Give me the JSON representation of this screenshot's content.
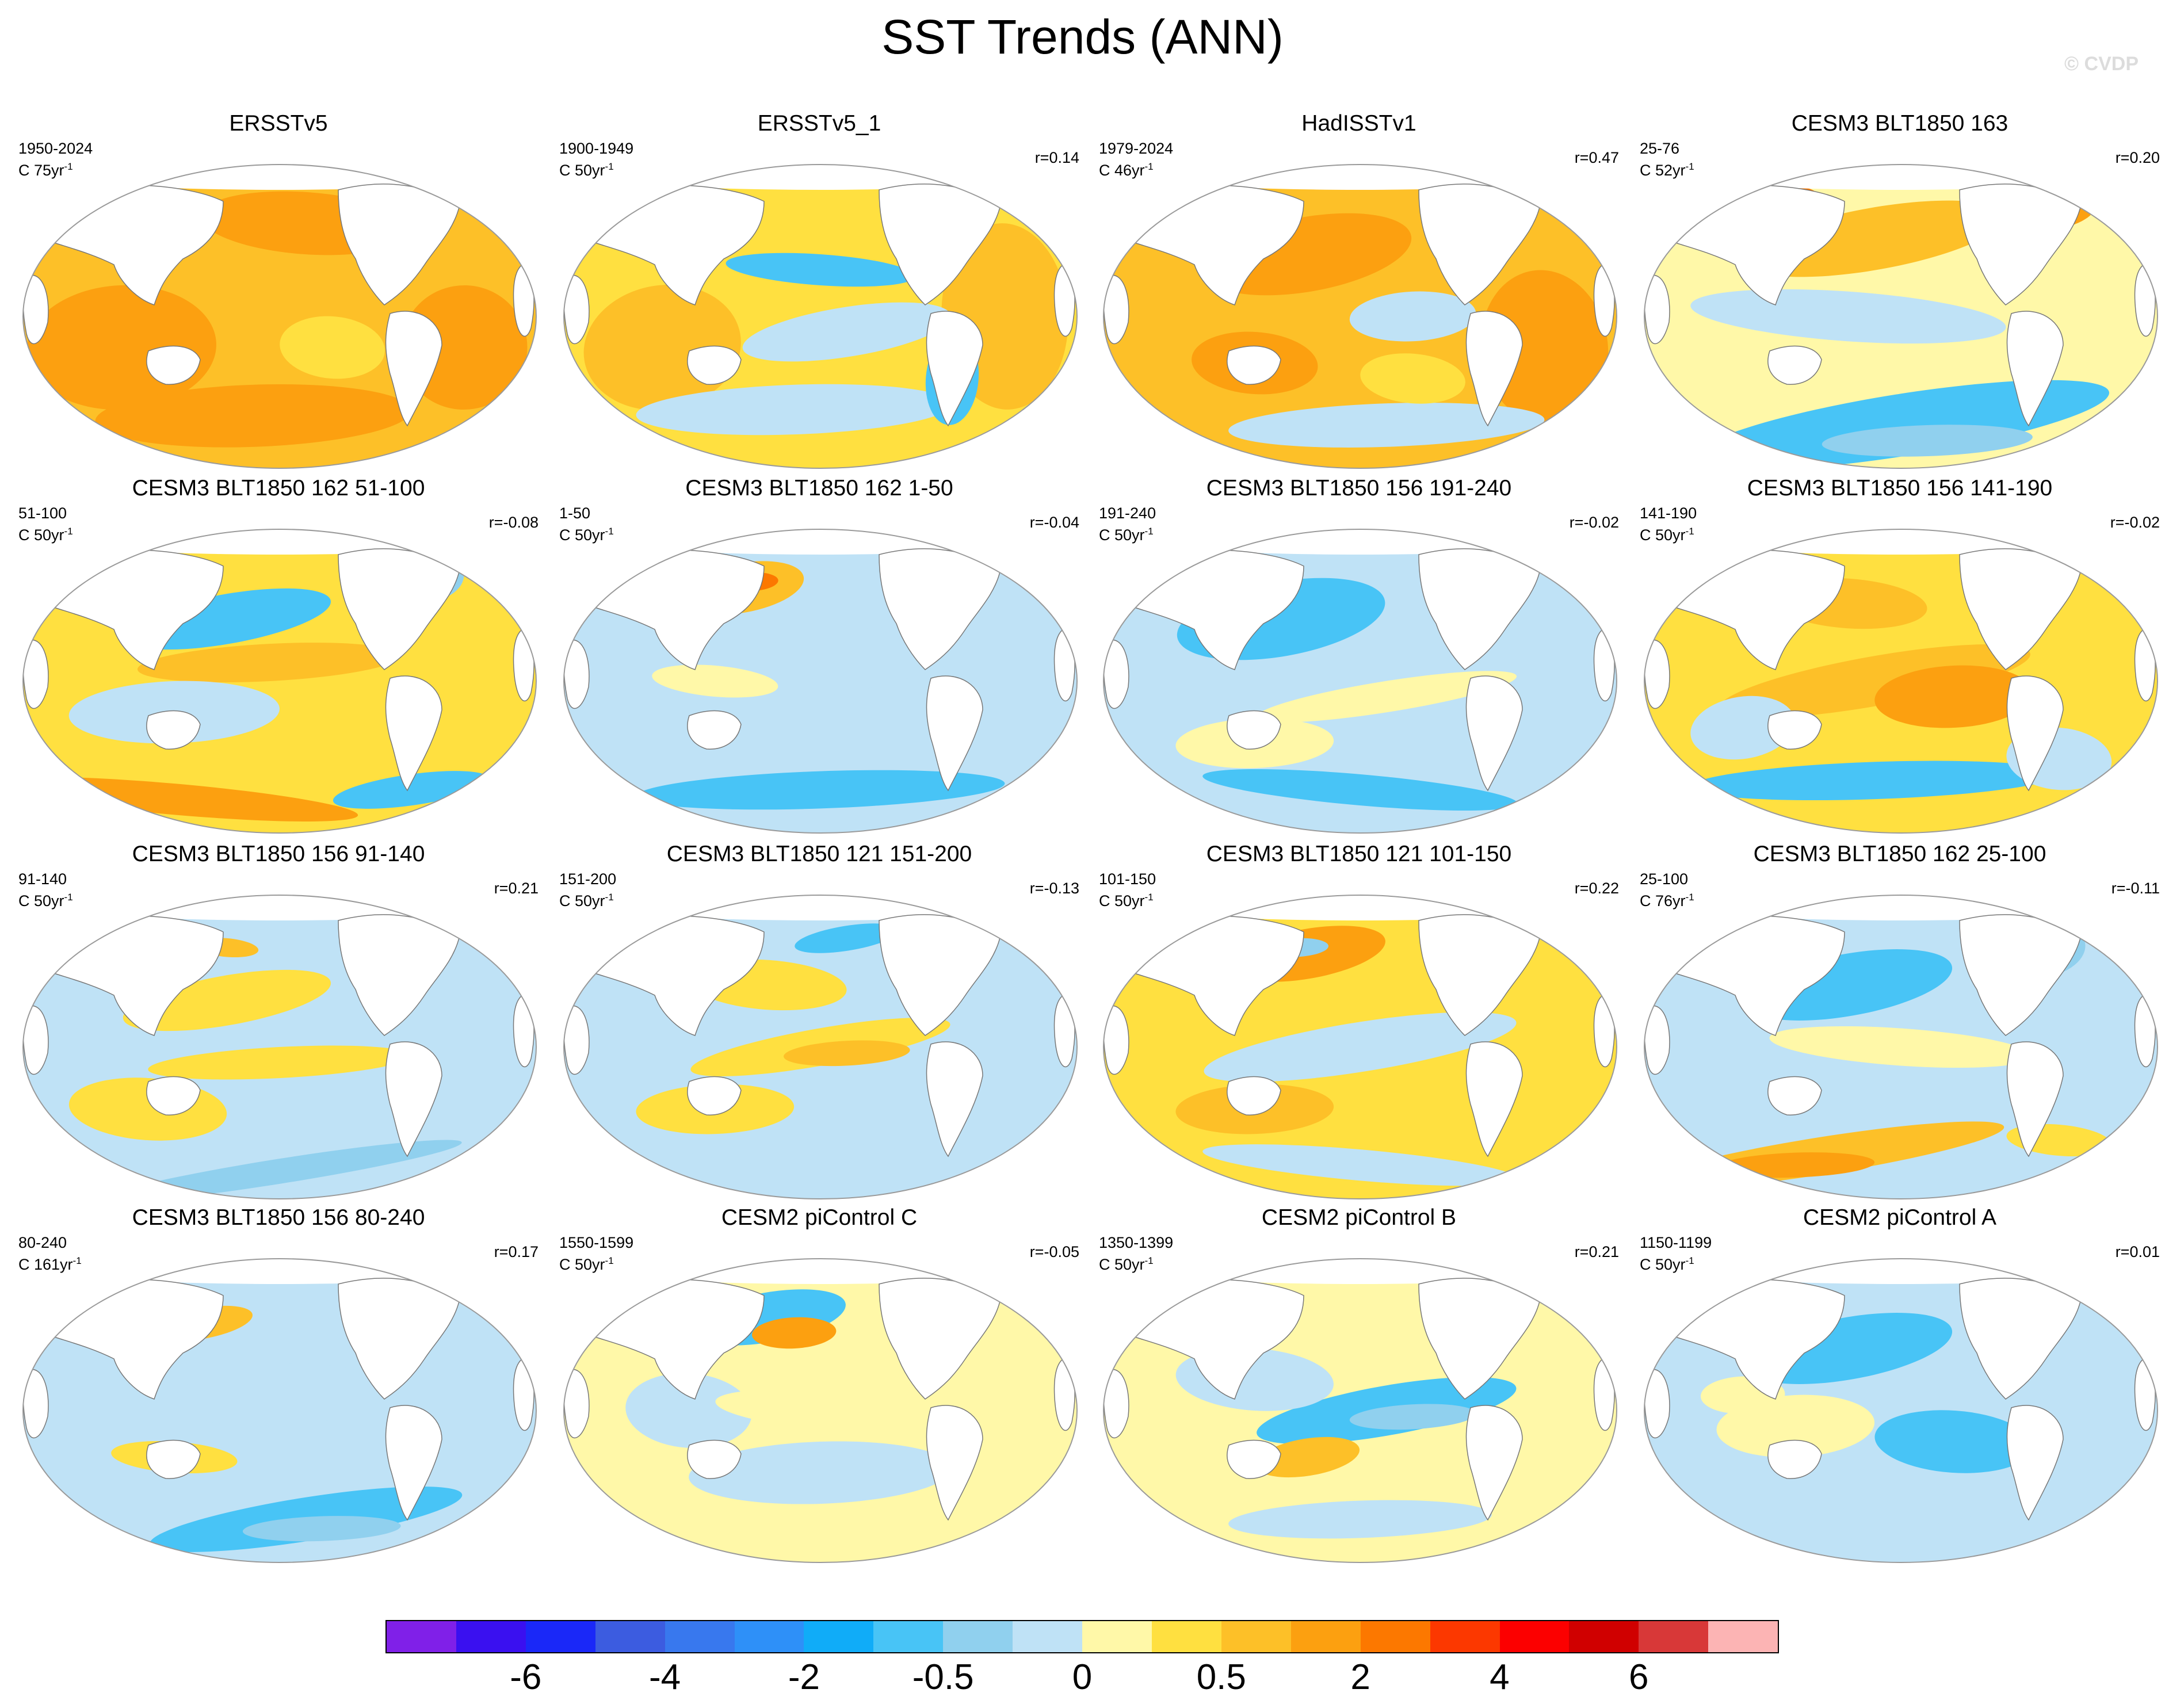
{
  "title": "SST Trends (ANN)",
  "watermark": "© CVDP",
  "colors": {
    "land": "#ffffff",
    "coast": "#777777",
    "map_border": "#9a9a9a"
  },
  "panels": [
    {
      "title": "ERSSTv5",
      "period": "1950-2024",
      "units_prefix": "C 75yr",
      "units_exp": "-1",
      "corr": "",
      "pattern": "strong-warming"
    },
    {
      "title": "ERSSTv5_1",
      "period": "1900-1949",
      "units_prefix": "C 50yr",
      "units_exp": "-1",
      "corr": "r=0.14",
      "pattern": "mixed-warm"
    },
    {
      "title": "HadISSTv1",
      "period": "1979-2024",
      "units_prefix": "C 46yr",
      "units_exp": "-1",
      "corr": "r=0.47",
      "pattern": "warming-cool-east-pacific"
    },
    {
      "title": "CESM3 BLT1850 163",
      "period": "25-76",
      "units_prefix": "C 52yr",
      "units_exp": "-1",
      "corr": "r=0.20",
      "pattern": "north-warm-south-cool"
    },
    {
      "title": "CESM3 BLT1850 162 51-100",
      "period": "51-100",
      "units_prefix": "C 50yr",
      "units_exp": "-1",
      "corr": "r=-0.08",
      "pattern": "cool-north-atlantic"
    },
    {
      "title": "CESM3 BLT1850 162 1-50",
      "period": "1-50",
      "units_prefix": "C 50yr",
      "units_exp": "-1",
      "corr": "r=-0.04",
      "pattern": "cool-tropics-warm-kuroshio"
    },
    {
      "title": "CESM3 BLT1850 156 191-240",
      "period": "191-240",
      "units_prefix": "C 50yr",
      "units_exp": "-1",
      "corr": "r=-0.02",
      "pattern": "strong-cool-north-atlantic"
    },
    {
      "title": "CESM3 BLT1850 156 141-190",
      "period": "141-190",
      "units_prefix": "C 50yr",
      "units_exp": "-1",
      "corr": "r=-0.02",
      "pattern": "el-nino-like"
    },
    {
      "title": "CESM3 BLT1850 156 91-140",
      "period": "91-140",
      "units_prefix": "C 50yr",
      "units_exp": "-1",
      "corr": "r=0.21",
      "pattern": "mixed-weak"
    },
    {
      "title": "CESM3 BLT1850 121 151-200",
      "period": "151-200",
      "units_prefix": "C 50yr",
      "units_exp": "-1",
      "corr": "r=-0.13",
      "pattern": "weak-el-nino"
    },
    {
      "title": "CESM3 BLT1850 121 101-150",
      "period": "101-150",
      "units_prefix": "C 50yr",
      "units_exp": "-1",
      "corr": "r=0.22",
      "pattern": "warm-north-pacific"
    },
    {
      "title": "CESM3 BLT1850 162 25-100",
      "period": "25-100",
      "units_prefix": "C 76yr",
      "units_exp": "-1",
      "corr": "r=-0.11",
      "pattern": "cool-north-warm-south"
    },
    {
      "title": "CESM3 BLT1850 156 80-240",
      "period": "80-240",
      "units_prefix": "C 161yr",
      "units_exp": "-1",
      "corr": "r=0.17",
      "pattern": "cool-southern-ocean"
    },
    {
      "title": "CESM2 piControl C",
      "period": "1550-1599",
      "units_prefix": "C 50yr",
      "units_exp": "-1",
      "corr": "r=-0.05",
      "pattern": "warm-kuroshio-mixed"
    },
    {
      "title": "CESM2 piControl B",
      "period": "1350-1399",
      "units_prefix": "C 50yr",
      "units_exp": "-1",
      "corr": "r=0.21",
      "pattern": "la-nina-like"
    },
    {
      "title": "CESM2 piControl A",
      "period": "1150-1199",
      "units_prefix": "C 50yr",
      "units_exp": "-1",
      "corr": "r=0.01",
      "pattern": "weak-cool"
    }
  ],
  "colorbar": {
    "colors": [
      "#8020e8",
      "#3a10f0",
      "#1a28f8",
      "#3c5ce0",
      "#3878ee",
      "#2e90f8",
      "#10acf8",
      "#48c4f6",
      "#90d0ee",
      "#bfe2f6",
      "#fff8a8",
      "#ffe040",
      "#fdc028",
      "#fca010",
      "#fc7800",
      "#fc3800",
      "#fc0000",
      "#d00000",
      "#d83838",
      "#fcb4b4"
    ],
    "labels": [
      "-6",
      "-4",
      "-2",
      "-0.5",
      "0",
      "0.5",
      "2",
      "4",
      "6"
    ],
    "label_box_edges": [
      2,
      4,
      6,
      8,
      10,
      12,
      14,
      16,
      18
    ]
  }
}
